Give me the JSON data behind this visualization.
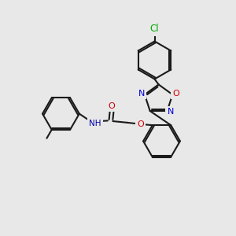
{
  "bg": "#e8e8e8",
  "bc": "#1a1a1a",
  "bw": 1.5,
  "fs": 8.0,
  "atom_colors": {
    "O": "#cc0000",
    "N": "#0000dd",
    "Cl": "#00aa00",
    "H": "#0000aa"
  },
  "layout": {
    "xlim": [
      0,
      10
    ],
    "ylim": [
      0,
      10
    ]
  }
}
